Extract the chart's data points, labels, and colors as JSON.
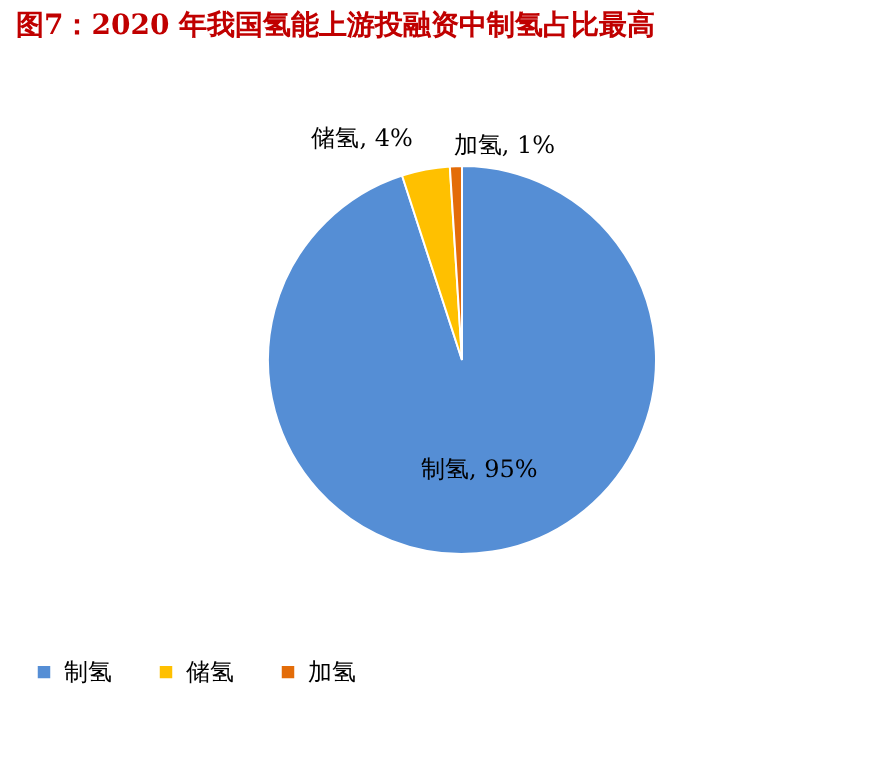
{
  "chart_data": {
    "type": "pie",
    "title": "图7：2020 年我国氢能上游投融资中制氢占比最高",
    "categories": [
      "制氢",
      "储氢",
      "加氢"
    ],
    "values": [
      95,
      4,
      1
    ],
    "colors": [
      "#558ed5",
      "#ffc000",
      "#e36c09"
    ],
    "value_labels": [
      "制氢, 95%",
      "储氢, 4%",
      "加氢, 1%"
    ],
    "legend": "bottom"
  }
}
